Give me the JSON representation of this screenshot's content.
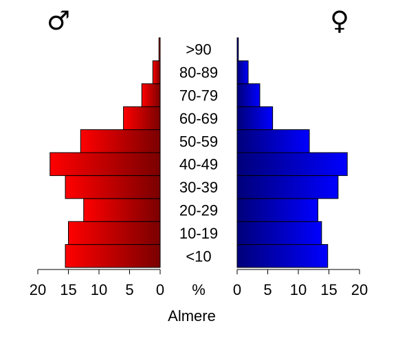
{
  "chart_data": {
    "type": "bar",
    "orientation": "horizontal-pyramid",
    "categories": [
      "<10",
      "10-19",
      "20-29",
      "30-39",
      "40-49",
      "50-59",
      "60-69",
      "70-79",
      "80-89",
      ">90"
    ],
    "series": [
      {
        "name": "♂",
        "side": "left",
        "values": [
          15.5,
          15.0,
          12.5,
          15.5,
          18.0,
          13.0,
          6.0,
          3.0,
          1.2,
          0.2
        ],
        "color_dark": "#7a0000",
        "color_light": "#ff0000"
      },
      {
        "name": "♀",
        "side": "right",
        "values": [
          14.8,
          13.8,
          13.2,
          16.5,
          18.0,
          11.8,
          5.8,
          3.7,
          1.8,
          0.2
        ],
        "color_dark": "#00007a",
        "color_light": "#0000ff"
      }
    ],
    "xlim": [
      0,
      20
    ],
    "xticks": [
      0,
      5,
      10,
      15,
      20
    ],
    "male_tick_labels": [
      "20",
      "15",
      "10",
      "5",
      "0"
    ],
    "female_tick_labels": [
      "0",
      "5",
      "10",
      "15",
      "20"
    ],
    "unit_label": "%",
    "xlabel": "Almere",
    "male_symbol": "♂",
    "female_symbol": "♀",
    "grid": false
  }
}
